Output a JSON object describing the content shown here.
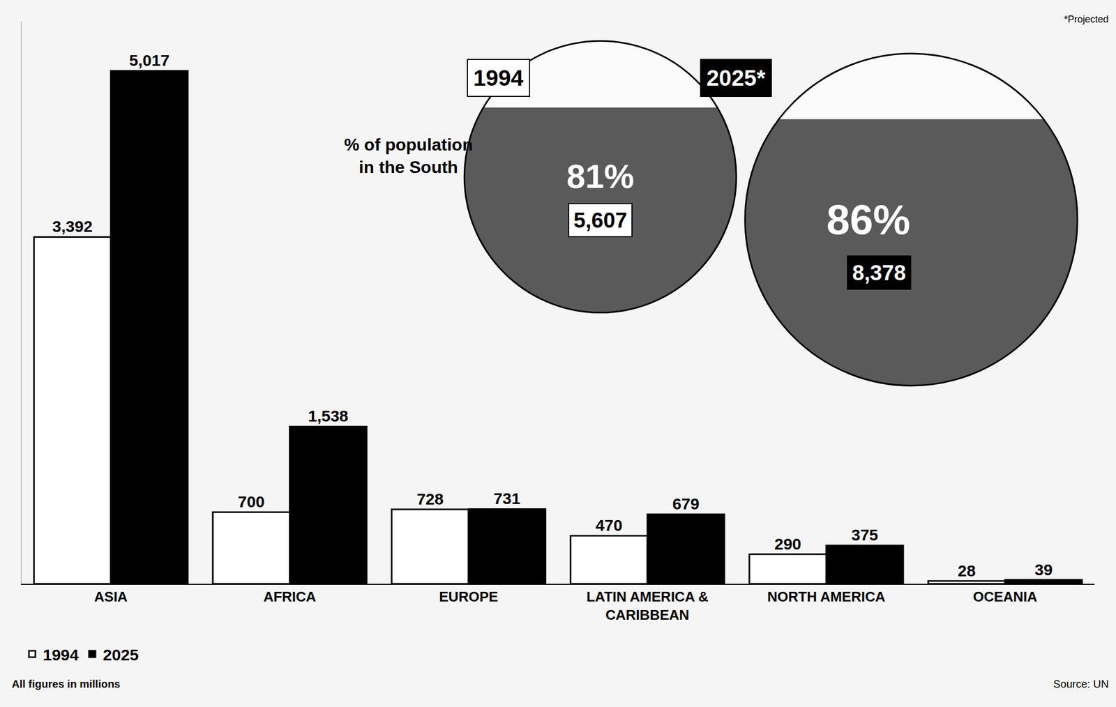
{
  "chart_data": {
    "type": "bar",
    "categories": [
      "ASIA",
      "AFRICA",
      "EUROPE",
      "LATIN AMERICA & CARIBBEAN",
      "NORTH AMERICA",
      "OCEANIA"
    ],
    "series": [
      {
        "name": "1994",
        "color": "#ffffff",
        "values": [
          3392,
          700,
          728,
          470,
          290,
          28
        ],
        "value_labels": [
          "3,392",
          "700",
          "728",
          "470",
          "290",
          "28"
        ]
      },
      {
        "name": "2025",
        "color": "#000000",
        "values": [
          5017,
          1538,
          731,
          679,
          375,
          39
        ],
        "value_labels": [
          "5,017",
          "1,538",
          "731",
          "679",
          "375",
          "39"
        ]
      }
    ],
    "ylim": [
      0,
      5500
    ],
    "grid": false,
    "tick_labels": "x",
    "data_labels": true,
    "legend": "bottom left"
  },
  "south_share": {
    "title": "% of population in the South",
    "panels": [
      {
        "label": "1994",
        "percent": 81,
        "percent_label": "81%",
        "total": 5607,
        "total_label": "5,607"
      },
      {
        "label": "2025*",
        "percent": 86,
        "percent_label": "86%",
        "total": 8378,
        "total_label": "8,378"
      }
    ]
  },
  "notes": {
    "projected": "*Projected",
    "units": "All figures in millions",
    "source": "Source: UN"
  }
}
